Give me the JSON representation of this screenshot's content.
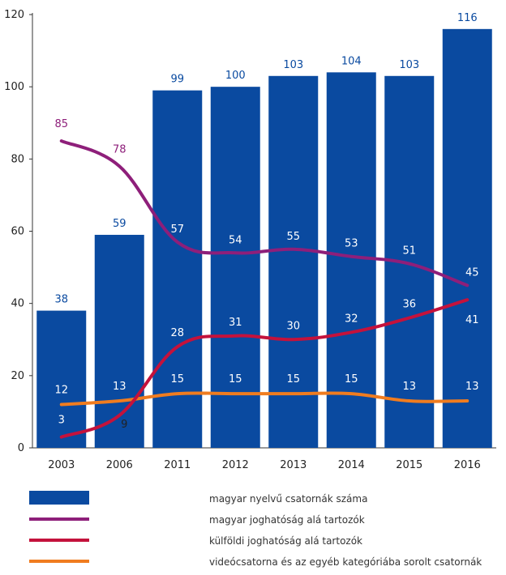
{
  "chart_data": {
    "type": "bar",
    "categories": [
      "2003",
      "2006",
      "2011",
      "2012",
      "2013",
      "2014",
      "2015",
      "2016"
    ],
    "series": [
      {
        "name": "magyar nyelvű csatornák száma",
        "kind": "bar",
        "color": "#0a4aa0",
        "values": [
          38,
          59,
          99,
          100,
          103,
          104,
          103,
          116
        ]
      },
      {
        "name": "magyar joghatóság alá tartozók",
        "kind": "line",
        "color": "#8e1f7a",
        "values": [
          85,
          78,
          57,
          54,
          55,
          53,
          51,
          45
        ]
      },
      {
        "name": "külföldi joghatóság alá tartozók",
        "kind": "line",
        "color": "#c4123c",
        "values": [
          3,
          9,
          28,
          31,
          30,
          32,
          36,
          41
        ]
      },
      {
        "name": "videócsatorna és az egyéb kategóriába sorolt csatornák",
        "kind": "line",
        "color": "#f07c1f",
        "values": [
          12,
          13,
          15,
          15,
          15,
          15,
          13,
          13
        ]
      }
    ],
    "ylim": [
      0,
      120
    ],
    "yticks": [
      "0",
      "20",
      "40",
      "60",
      "80",
      "100",
      "120"
    ],
    "grid": false,
    "legend_position": "bottom"
  }
}
